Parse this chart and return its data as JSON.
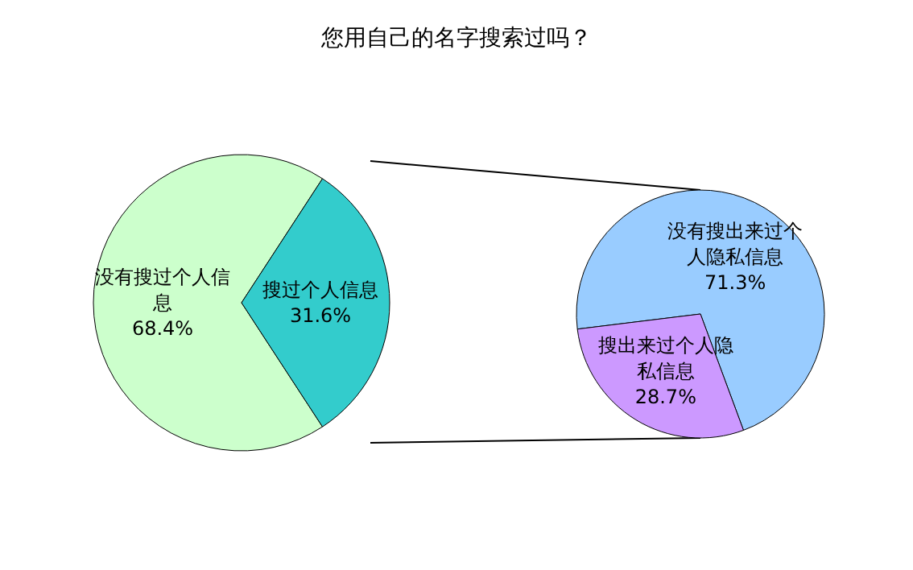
{
  "chart_data": [
    {
      "type": "pie",
      "title": "您用自己的名字搜索过吗？",
      "categories": [
        "没有搜过个人信息",
        "搜过个人信息"
      ],
      "values": [
        68.4,
        31.6
      ],
      "colors": [
        "#ccffcc",
        "#33cccc"
      ],
      "value_labels": [
        "68.4%",
        "31.6%"
      ]
    },
    {
      "type": "pie",
      "categories": [
        "没有搜出来过个人隐私信息",
        "搜出来过个人隐私信息"
      ],
      "values": [
        71.3,
        28.7
      ],
      "colors": [
        "#99ccff",
        "#cc99ff"
      ],
      "value_labels": [
        "71.3%",
        "28.7%"
      ]
    }
  ]
}
